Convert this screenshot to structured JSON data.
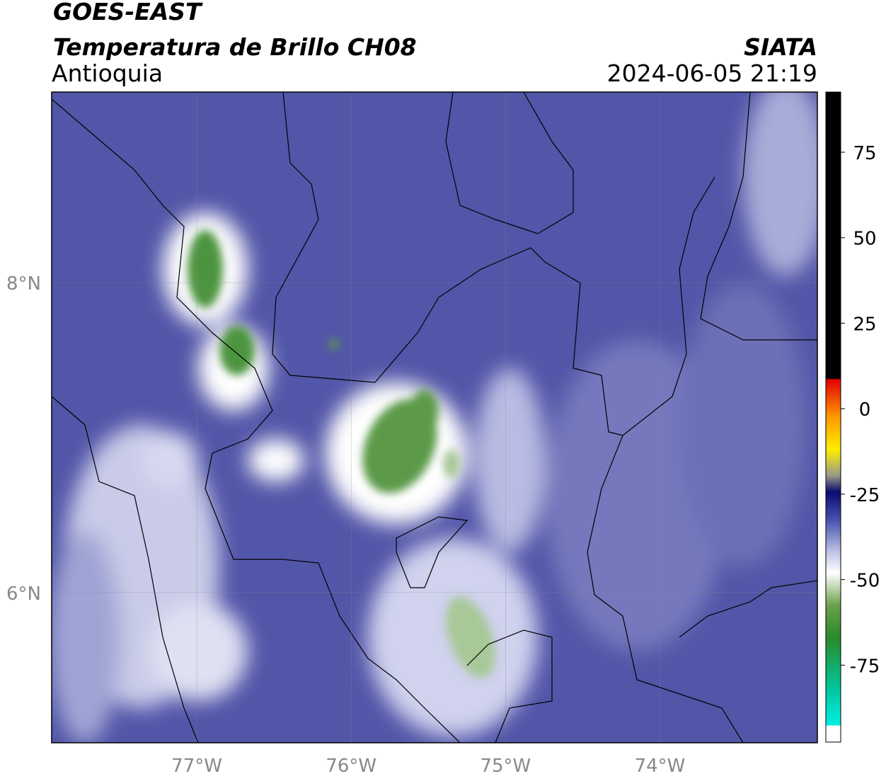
{
  "header": {
    "source": "GOES-EAST",
    "title": "Temperatura de Brillo CH08",
    "region": "Antioquia",
    "agency": "SIATA",
    "datetime": "2024-06-05 21:19"
  },
  "map": {
    "lonlim": [
      -77.94,
      -72.98
    ],
    "latlim": [
      5.03,
      9.23
    ],
    "lon_ticks": [
      {
        "value": -77,
        "label": "77°W"
      },
      {
        "value": -76,
        "label": "76°W"
      },
      {
        "value": -75,
        "label": "75°W"
      },
      {
        "value": -74,
        "label": "74°W"
      }
    ],
    "lat_ticks": [
      {
        "value": 8,
        "label": "8°N"
      },
      {
        "value": 6,
        "label": "6°N"
      }
    ]
  },
  "colorbar": {
    "lim": [
      -97.5,
      92.6
    ],
    "ticks": [
      75,
      50,
      25,
      0,
      -25,
      -50,
      -75
    ]
  }
}
